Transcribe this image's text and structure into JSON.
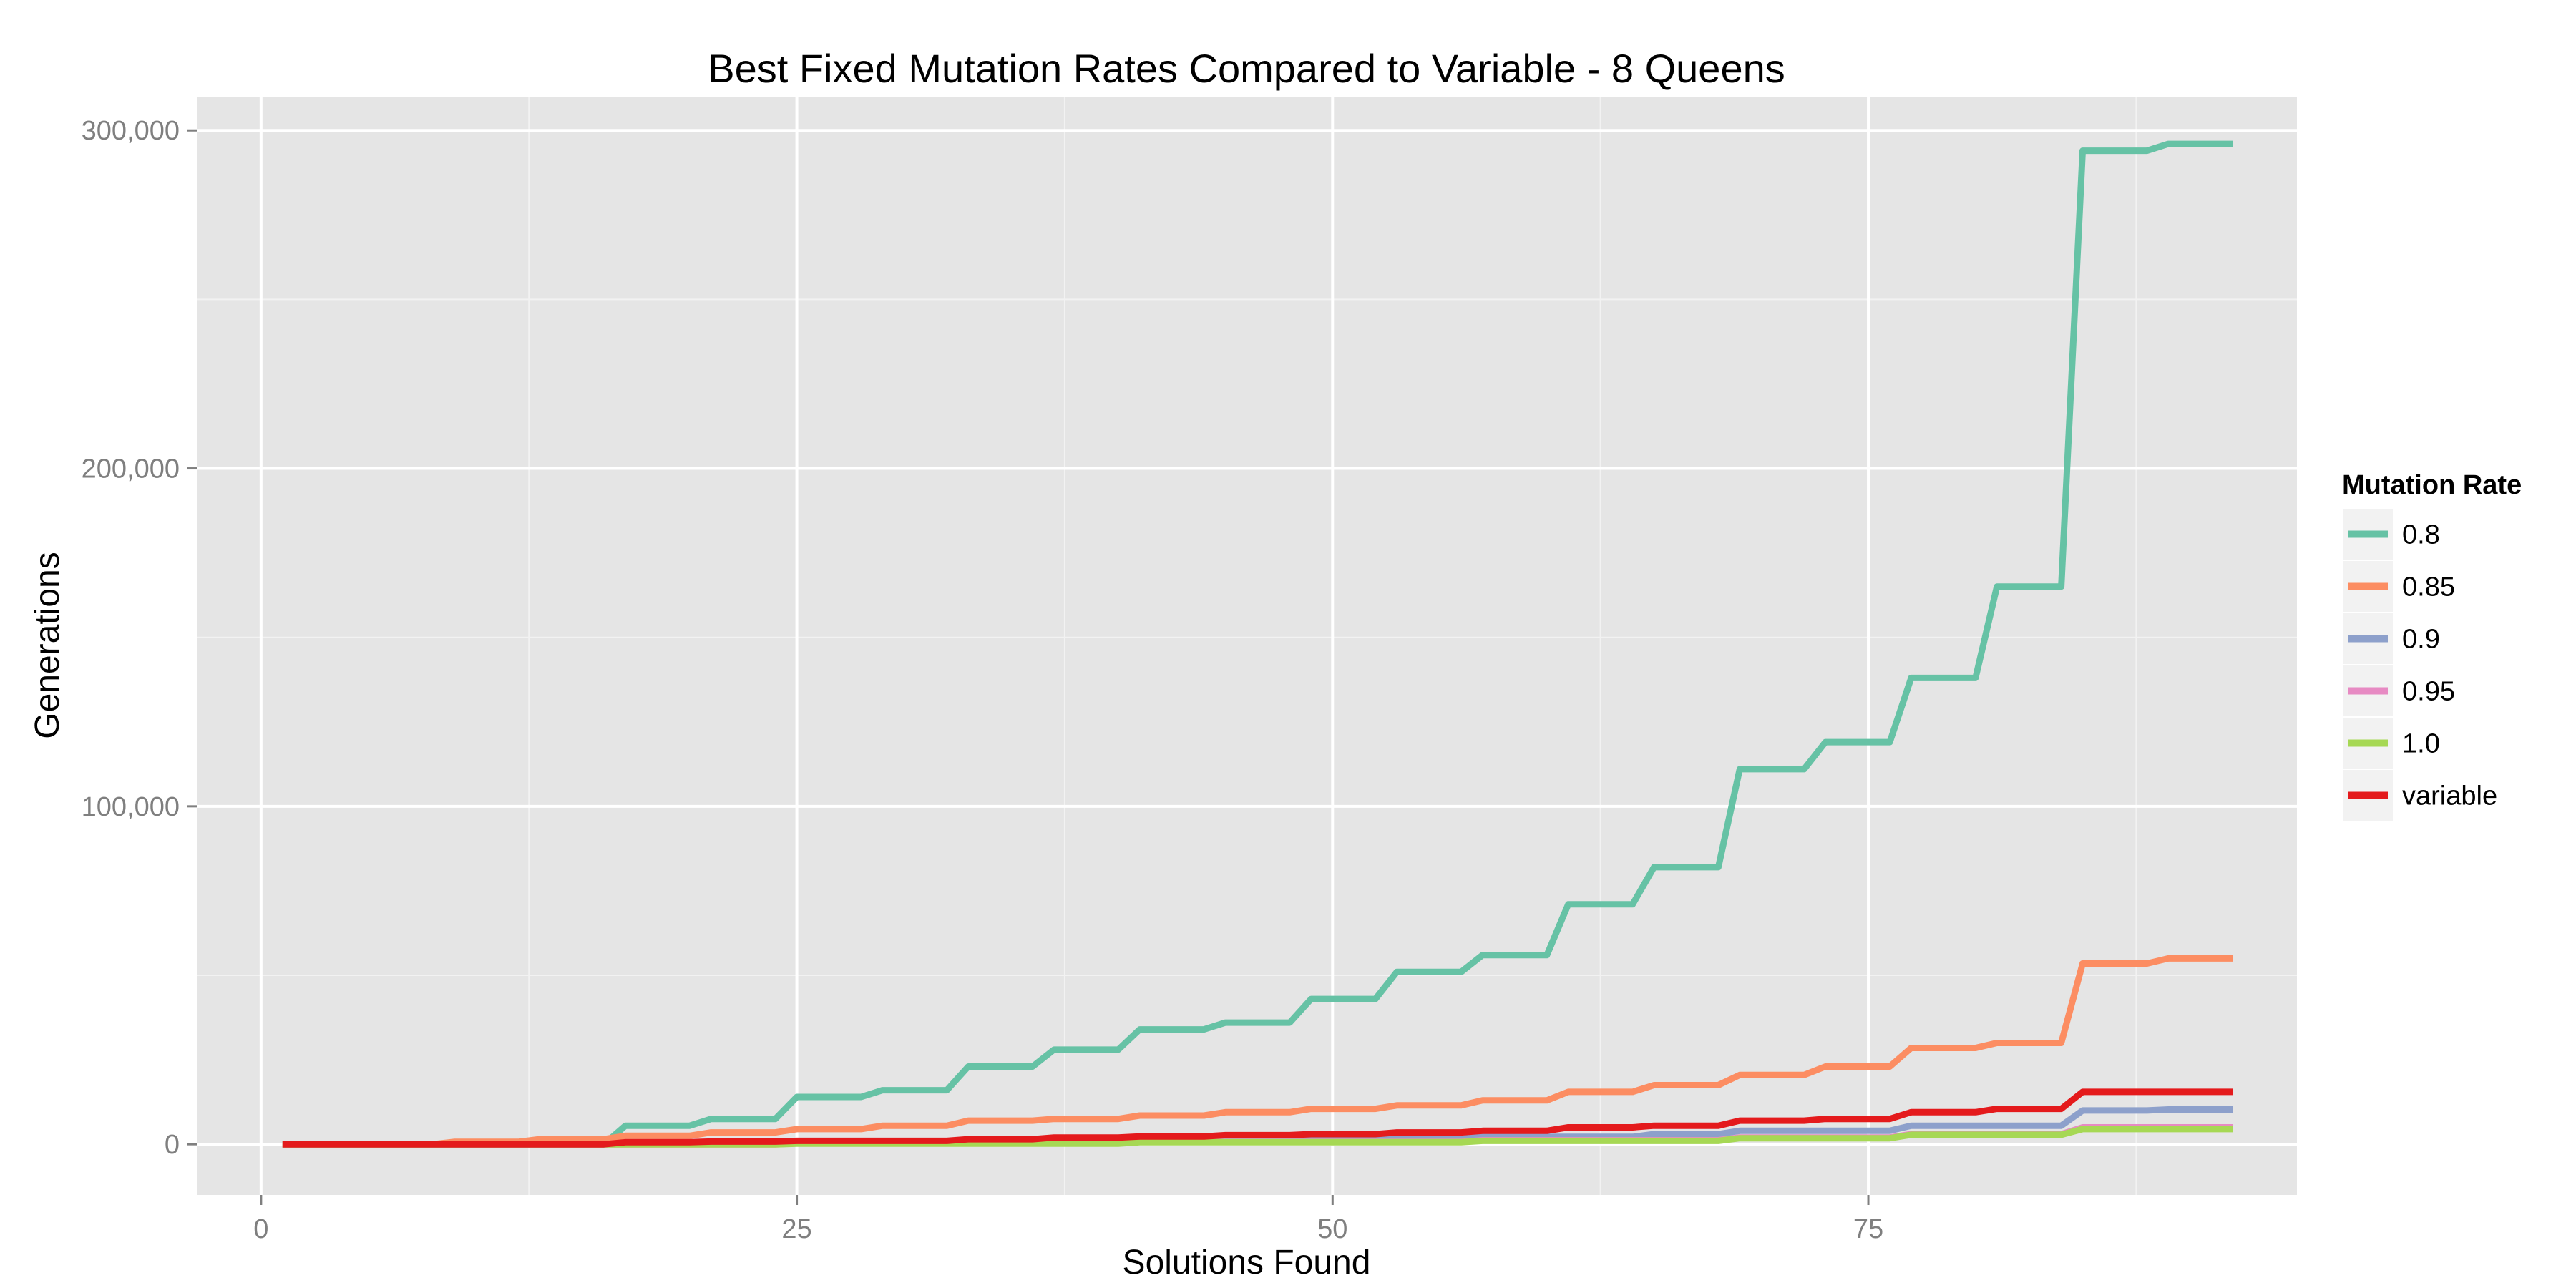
{
  "chart_data": {
    "type": "line",
    "title": "Best Fixed Mutation Rates Compared to Variable - 8 Queens",
    "xlabel": "Solutions Found",
    "ylabel": "Generations",
    "xlim": [
      -3,
      95
    ],
    "ylim": [
      -15000,
      310000
    ],
    "x_ticks": [
      0,
      25,
      50,
      75
    ],
    "x_tick_labels": [
      "0",
      "25",
      "50",
      "75"
    ],
    "y_ticks": [
      0,
      100000,
      200000,
      300000
    ],
    "y_tick_labels": [
      "0",
      "100,000",
      "200,000",
      "300,000"
    ],
    "grid": true,
    "legend_position": "right",
    "legend_title": "Mutation Rate",
    "series": [
      {
        "name": "0.8",
        "color": "#66c2a5",
        "points": [
          [
            1,
            0
          ],
          [
            16,
            0
          ],
          [
            17,
            5500
          ],
          [
            20,
            5500
          ],
          [
            21,
            7500
          ],
          [
            24,
            7500
          ],
          [
            25,
            14000
          ],
          [
            28,
            14000
          ],
          [
            29,
            16000
          ],
          [
            32,
            16000
          ],
          [
            33,
            23000
          ],
          [
            36,
            23000
          ],
          [
            37,
            28000
          ],
          [
            40,
            28000
          ],
          [
            41,
            34000
          ],
          [
            44,
            34000
          ],
          [
            45,
            36000
          ],
          [
            48,
            36000
          ],
          [
            49,
            43000
          ],
          [
            52,
            43000
          ],
          [
            53,
            51000
          ],
          [
            56,
            51000
          ],
          [
            57,
            56000
          ],
          [
            60,
            56000
          ],
          [
            61,
            71000
          ],
          [
            64,
            71000
          ],
          [
            65,
            82000
          ],
          [
            68,
            82000
          ],
          [
            69,
            111000
          ],
          [
            72,
            111000
          ],
          [
            73,
            119000
          ],
          [
            76,
            119000
          ],
          [
            77,
            138000
          ],
          [
            80,
            138000
          ],
          [
            81,
            165000
          ],
          [
            84,
            165000
          ],
          [
            85,
            294000
          ],
          [
            88,
            294000
          ],
          [
            89,
            296000
          ],
          [
            92,
            296000
          ]
        ]
      },
      {
        "name": "0.85",
        "color": "#fc8d62",
        "points": [
          [
            1,
            0
          ],
          [
            8,
            0
          ],
          [
            9,
            700
          ],
          [
            12,
            700
          ],
          [
            13,
            1500
          ],
          [
            16,
            1500
          ],
          [
            17,
            2500
          ],
          [
            20,
            2500
          ],
          [
            21,
            3500
          ],
          [
            24,
            3500
          ],
          [
            25,
            4500
          ],
          [
            28,
            4500
          ],
          [
            29,
            5500
          ],
          [
            32,
            5500
          ],
          [
            33,
            7000
          ],
          [
            36,
            7000
          ],
          [
            37,
            7500
          ],
          [
            40,
            7500
          ],
          [
            41,
            8500
          ],
          [
            44,
            8500
          ],
          [
            45,
            9500
          ],
          [
            48,
            9500
          ],
          [
            49,
            10500
          ],
          [
            52,
            10500
          ],
          [
            53,
            11500
          ],
          [
            56,
            11500
          ],
          [
            57,
            13000
          ],
          [
            60,
            13000
          ],
          [
            61,
            15500
          ],
          [
            64,
            15500
          ],
          [
            65,
            17500
          ],
          [
            68,
            17500
          ],
          [
            69,
            20500
          ],
          [
            72,
            20500
          ],
          [
            73,
            23000
          ],
          [
            76,
            23000
          ],
          [
            77,
            28500
          ],
          [
            80,
            28500
          ],
          [
            81,
            30000
          ],
          [
            84,
            30000
          ],
          [
            85,
            53500
          ],
          [
            88,
            53500
          ],
          [
            89,
            55000
          ],
          [
            92,
            55000
          ]
        ]
      },
      {
        "name": "0.9",
        "color": "#8da0cb",
        "points": [
          [
            1,
            0
          ],
          [
            16,
            0
          ],
          [
            17,
            300
          ],
          [
            24,
            300
          ],
          [
            25,
            600
          ],
          [
            32,
            600
          ],
          [
            33,
            900
          ],
          [
            40,
            900
          ],
          [
            41,
            1200
          ],
          [
            48,
            1200
          ],
          [
            49,
            1600
          ],
          [
            56,
            1600
          ],
          [
            57,
            2200
          ],
          [
            64,
            2200
          ],
          [
            65,
            3000
          ],
          [
            68,
            3000
          ],
          [
            69,
            4000
          ],
          [
            76,
            4000
          ],
          [
            77,
            5500
          ],
          [
            84,
            5500
          ],
          [
            85,
            10000
          ],
          [
            88,
            10000
          ],
          [
            89,
            10300
          ],
          [
            92,
            10300
          ]
        ]
      },
      {
        "name": "0.95",
        "color": "#e78ac3",
        "points": [
          [
            1,
            0
          ],
          [
            24,
            0
          ],
          [
            25,
            300
          ],
          [
            40,
            300
          ],
          [
            41,
            700
          ],
          [
            56,
            700
          ],
          [
            57,
            1200
          ],
          [
            68,
            1200
          ],
          [
            69,
            2000
          ],
          [
            76,
            2000
          ],
          [
            77,
            3000
          ],
          [
            84,
            3000
          ],
          [
            85,
            5000
          ],
          [
            92,
            5000
          ]
        ]
      },
      {
        "name": "1.0",
        "color": "#a6d854",
        "points": [
          [
            1,
            0
          ],
          [
            24,
            0
          ],
          [
            25,
            200
          ],
          [
            40,
            200
          ],
          [
            41,
            600
          ],
          [
            56,
            600
          ],
          [
            57,
            1000
          ],
          [
            68,
            1000
          ],
          [
            69,
            1800
          ],
          [
            76,
            1800
          ],
          [
            77,
            2800
          ],
          [
            84,
            2800
          ],
          [
            85,
            4500
          ],
          [
            92,
            4500
          ]
        ]
      },
      {
        "name": "variable",
        "color": "#e41a1c",
        "points": [
          [
            1,
            0
          ],
          [
            16,
            0
          ],
          [
            17,
            600
          ],
          [
            20,
            600
          ],
          [
            21,
            800
          ],
          [
            24,
            800
          ],
          [
            25,
            1000
          ],
          [
            32,
            1000
          ],
          [
            33,
            1500
          ],
          [
            36,
            1500
          ],
          [
            37,
            2000
          ],
          [
            40,
            2000
          ],
          [
            41,
            2300
          ],
          [
            44,
            2300
          ],
          [
            45,
            2700
          ],
          [
            48,
            2700
          ],
          [
            49,
            3000
          ],
          [
            52,
            3000
          ],
          [
            53,
            3500
          ],
          [
            56,
            3500
          ],
          [
            57,
            4000
          ],
          [
            60,
            4000
          ],
          [
            61,
            5000
          ],
          [
            64,
            5000
          ],
          [
            65,
            5500
          ],
          [
            68,
            5500
          ],
          [
            69,
            7000
          ],
          [
            72,
            7000
          ],
          [
            73,
            7500
          ],
          [
            76,
            7500
          ],
          [
            77,
            9500
          ],
          [
            80,
            9500
          ],
          [
            81,
            10500
          ],
          [
            84,
            10500
          ],
          [
            85,
            15500
          ],
          [
            92,
            15500
          ]
        ]
      }
    ]
  }
}
